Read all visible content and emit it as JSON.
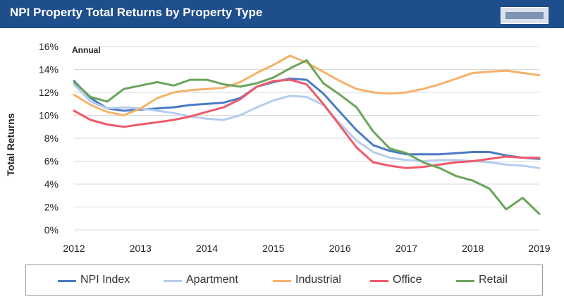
{
  "header": {
    "title": "NPI Property Total Returns by Property Type"
  },
  "chart_data": {
    "type": "line",
    "title": "NPI Property Total Returns by Property Type",
    "annotation": "Annual",
    "ylabel": "Total Returns",
    "xlabel": "",
    "ylim": [
      0,
      16
    ],
    "xlim": [
      2012,
      2019
    ],
    "y_ticks": [
      "0%",
      "2%",
      "4%",
      "6%",
      "8%",
      "10%",
      "12%",
      "14%",
      "16%"
    ],
    "x_ticks": [
      "2012",
      "2013",
      "2014",
      "2015",
      "2016",
      "2017",
      "2018",
      "2019"
    ],
    "grid": "horizontal",
    "legend_position": "bottom",
    "series": [
      {
        "name": "NPI Index",
        "color": "#4a7bc4",
        "x": [
          2012,
          2012.25,
          2012.5,
          2012.75,
          2013,
          2013.25,
          2013.5,
          2013.75,
          2014,
          2014.25,
          2014.5,
          2014.75,
          2015,
          2015.25,
          2015.5,
          2015.75,
          2016,
          2016.25,
          2016.5,
          2016.75,
          2017,
          2017.25,
          2017.5,
          2017.75,
          2018,
          2018.25,
          2018.5,
          2018.75,
          2019
        ],
        "values": [
          13.0,
          11.5,
          10.6,
          10.4,
          10.5,
          10.6,
          10.7,
          10.9,
          11.0,
          11.1,
          11.5,
          12.5,
          12.9,
          13.2,
          13.1,
          11.9,
          10.3,
          8.7,
          7.4,
          6.9,
          6.6,
          6.6,
          6.6,
          6.7,
          6.8,
          6.8,
          6.5,
          6.3,
          6.2
        ]
      },
      {
        "name": "Apartment",
        "color": "#b7cdee",
        "x": [
          2012,
          2012.25,
          2012.5,
          2012.75,
          2013,
          2013.25,
          2013.5,
          2013.75,
          2014,
          2014.25,
          2014.5,
          2014.75,
          2015,
          2015.25,
          2015.5,
          2015.75,
          2016,
          2016.25,
          2016.5,
          2016.75,
          2017,
          2017.25,
          2017.5,
          2017.75,
          2018,
          2018.25,
          2018.5,
          2018.75,
          2019
        ],
        "values": [
          12.7,
          11.2,
          10.6,
          10.7,
          10.6,
          10.4,
          10.2,
          9.9,
          9.7,
          9.6,
          10.0,
          10.7,
          11.3,
          11.7,
          11.6,
          10.9,
          9.3,
          7.8,
          6.8,
          6.3,
          6.1,
          6.0,
          6.1,
          6.1,
          6.0,
          5.9,
          5.7,
          5.6,
          5.4
        ]
      },
      {
        "name": "Industrial",
        "color": "#f5b26b",
        "x": [
          2012,
          2012.25,
          2012.5,
          2012.75,
          2013,
          2013.25,
          2013.5,
          2013.75,
          2014,
          2014.25,
          2014.5,
          2014.75,
          2015,
          2015.25,
          2015.5,
          2015.75,
          2016,
          2016.25,
          2016.5,
          2016.75,
          2017,
          2017.25,
          2017.5,
          2017.75,
          2018,
          2018.25,
          2018.5,
          2018.75,
          2019
        ],
        "values": [
          11.8,
          10.9,
          10.3,
          10.0,
          10.6,
          11.5,
          12.0,
          12.2,
          12.3,
          12.4,
          12.9,
          13.7,
          14.4,
          15.2,
          14.6,
          13.8,
          13.0,
          12.3,
          12.0,
          11.9,
          12.0,
          12.3,
          12.7,
          13.2,
          13.7,
          13.8,
          13.9,
          13.7,
          13.5
        ]
      },
      {
        "name": "Office",
        "color": "#f05a6a",
        "x": [
          2012,
          2012.25,
          2012.5,
          2012.75,
          2013,
          2013.25,
          2013.5,
          2013.75,
          2014,
          2014.25,
          2014.5,
          2014.75,
          2015,
          2015.25,
          2015.5,
          2015.75,
          2016,
          2016.25,
          2016.5,
          2016.75,
          2017,
          2017.25,
          2017.5,
          2017.75,
          2018,
          2018.25,
          2018.5,
          2018.75,
          2019
        ],
        "values": [
          10.4,
          9.6,
          9.2,
          9.0,
          9.2,
          9.4,
          9.6,
          9.9,
          10.3,
          10.7,
          11.4,
          12.5,
          13.0,
          13.1,
          12.7,
          11.0,
          9.1,
          7.2,
          5.9,
          5.6,
          5.4,
          5.5,
          5.7,
          5.9,
          6.0,
          6.2,
          6.4,
          6.3,
          6.3
        ]
      },
      {
        "name": "Retail",
        "color": "#6aa55b",
        "x": [
          2012,
          2012.25,
          2012.5,
          2012.75,
          2013,
          2013.25,
          2013.5,
          2013.75,
          2014,
          2014.25,
          2014.5,
          2014.75,
          2015,
          2015.25,
          2015.5,
          2015.75,
          2016,
          2016.25,
          2016.5,
          2016.75,
          2017,
          2017.25,
          2017.5,
          2017.75,
          2018,
          2018.25,
          2018.5,
          2018.75,
          2019
        ],
        "values": [
          12.9,
          11.6,
          11.2,
          12.3,
          12.6,
          12.9,
          12.6,
          13.1,
          13.1,
          12.7,
          12.5,
          12.8,
          13.3,
          14.1,
          14.8,
          12.8,
          11.8,
          10.7,
          8.6,
          7.1,
          6.7,
          5.9,
          5.4,
          4.7,
          4.3,
          3.6,
          1.8,
          2.8,
          1.4
        ]
      }
    ]
  }
}
